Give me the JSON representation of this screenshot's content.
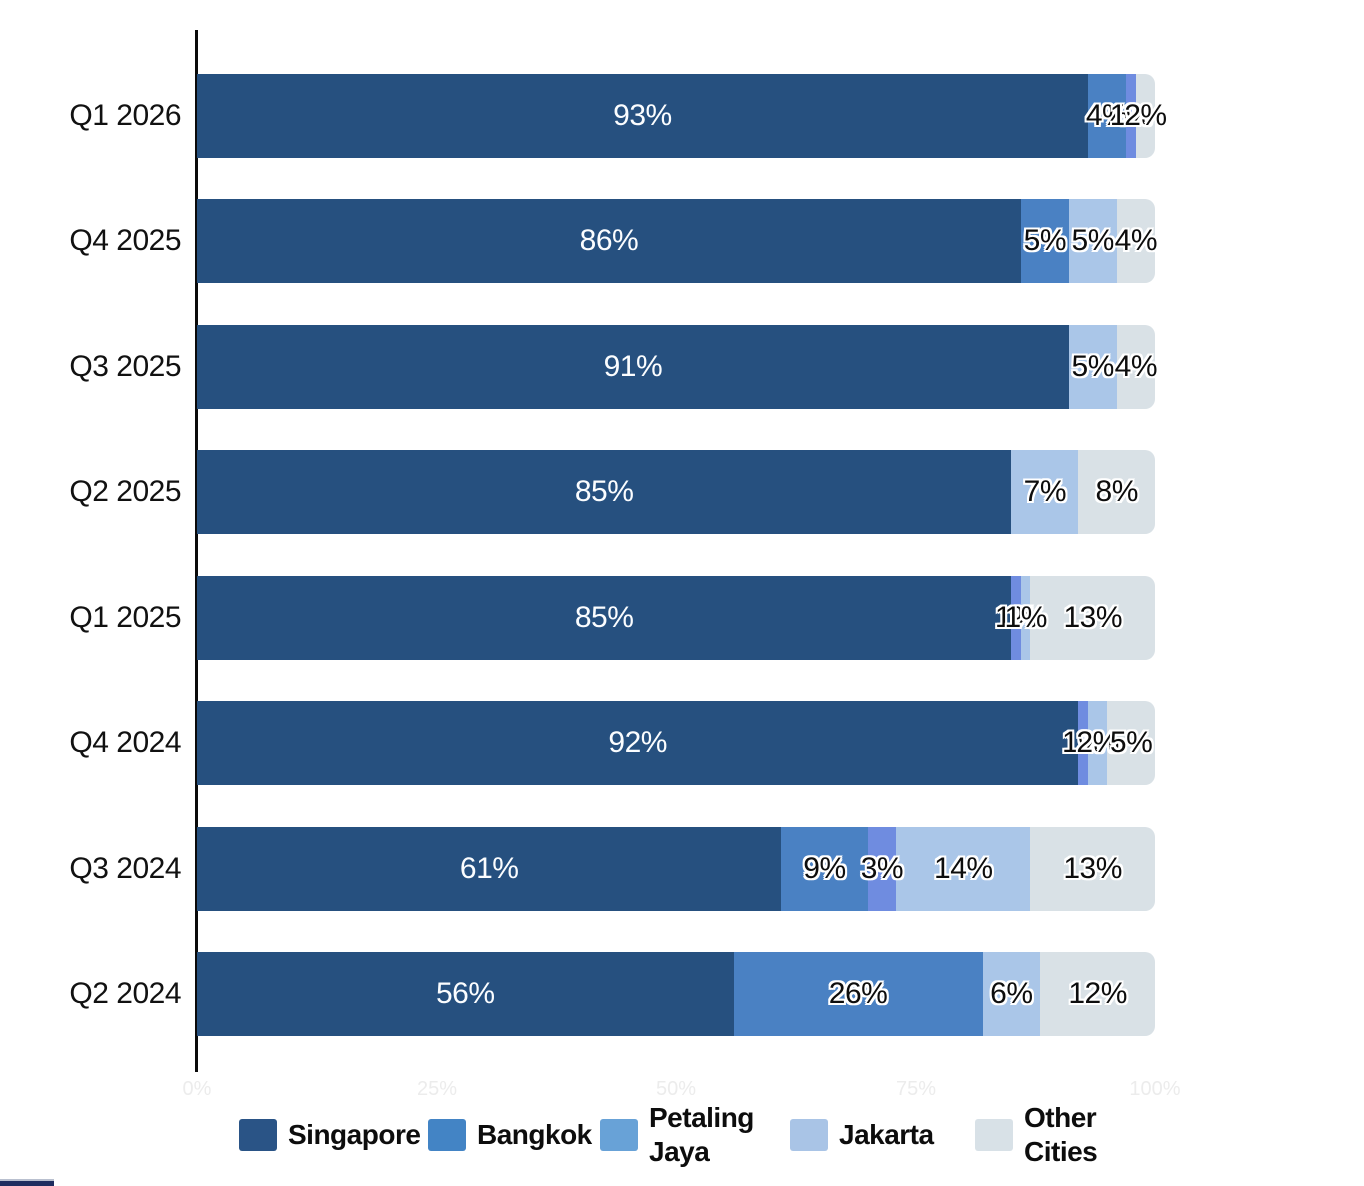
{
  "chart_data": {
    "type": "bar",
    "orientation": "horizontal",
    "stacked": true,
    "unit": "%",
    "title": "",
    "xlabel": "",
    "ylabel": "",
    "xlim": [
      0,
      100
    ],
    "grid": false,
    "legend_position": "bottom",
    "x_ticks": [
      "0%",
      "25%",
      "50%",
      "75%",
      "100%"
    ],
    "x_ticks_style": "faded-nearly-invisible",
    "categories": [
      "Q1 2026",
      "Q4 2025",
      "Q3 2025",
      "Q2 2025",
      "Q1 2025",
      "Q4 2024",
      "Q3 2024",
      "Q2 2024"
    ],
    "series": [
      {
        "name": "Singapore",
        "color": "#26507f",
        "legend_color": "#2a5486",
        "label_style": "light",
        "values": [
          93,
          86,
          91,
          85,
          85,
          92,
          61,
          56
        ]
      },
      {
        "name": "Bangkok",
        "color": "#4a81c3",
        "legend_color": "#4384c5",
        "label_style": "dark",
        "values": [
          4,
          5,
          0,
          0,
          0,
          0,
          9,
          26
        ]
      },
      {
        "name": "Petaling Jaya",
        "color": "#6f8ce0",
        "legend_color": "#68a2d7",
        "label_style": "dark",
        "values": [
          1,
          0,
          0,
          0,
          1,
          1,
          3,
          0
        ]
      },
      {
        "name": "Jakarta",
        "color": "#aac6e8",
        "legend_color": "#a9c4e6",
        "label_style": "dark",
        "values": [
          0,
          5,
          5,
          7,
          1,
          2,
          14,
          6
        ]
      },
      {
        "name": "Other Cities",
        "color": "#d9e1e6",
        "legend_color": "#d8e1e7",
        "label_style": "dark",
        "values": [
          2,
          4,
          4,
          8,
          13,
          5,
          13,
          12
        ]
      }
    ]
  },
  "decor": {
    "axis_color": "#0a0a0a",
    "tick_color": "#ececec",
    "bottom_strip_color": "#1e2d5f"
  }
}
